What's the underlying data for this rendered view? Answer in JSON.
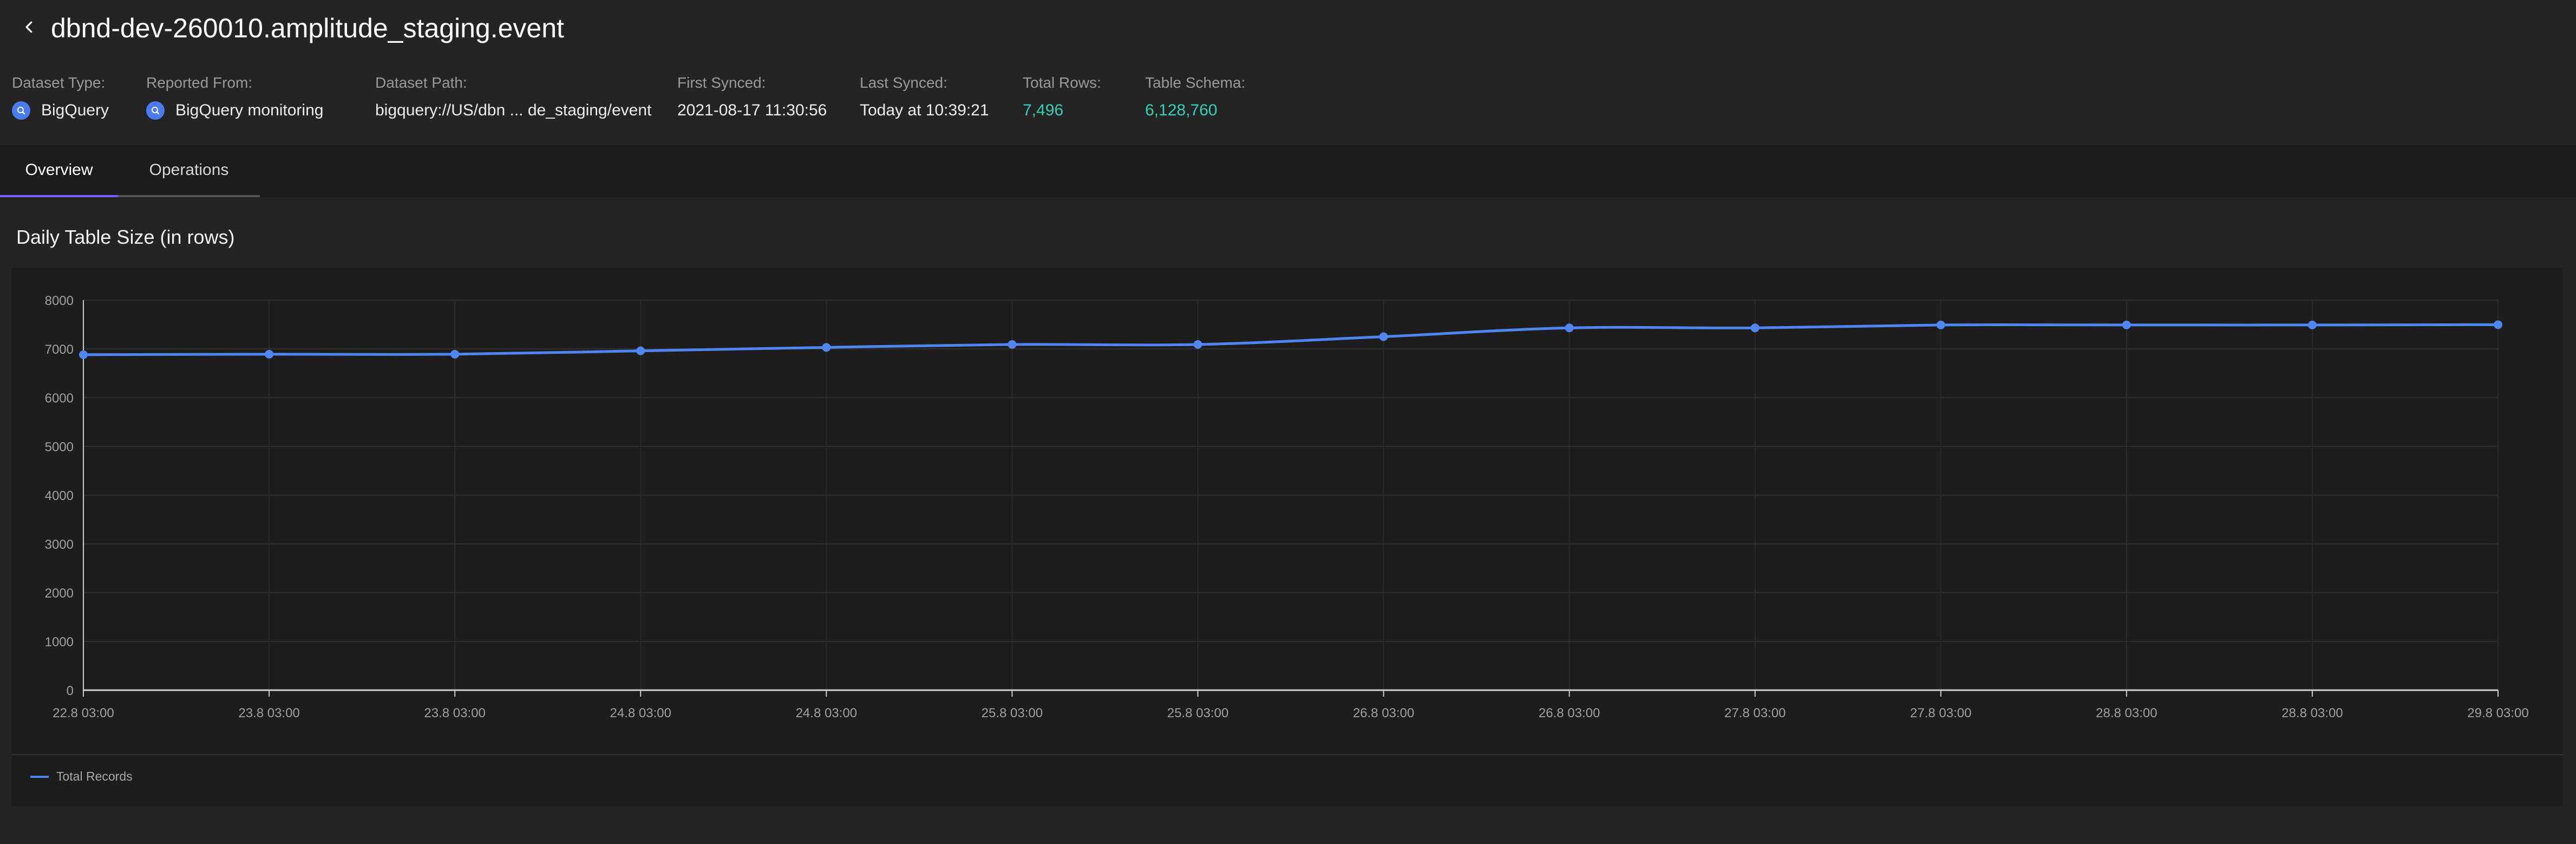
{
  "header": {
    "title": "dbnd-dev-260010.amplitude_staging.event",
    "meta": {
      "dataset_type": {
        "label": "Dataset Type:",
        "value": "BigQuery",
        "icon": "bigquery-icon"
      },
      "reported_from": {
        "label": "Reported From:",
        "value": "BigQuery monitoring",
        "icon": "bigquery-icon"
      },
      "dataset_path": {
        "label": "Dataset Path:",
        "value": "bigquery://US/dbn ... de_staging/event"
      },
      "first_synced": {
        "label": "First Synced:",
        "value": "2021-08-17 11:30:56"
      },
      "last_synced": {
        "label": "Last Synced:",
        "value": "Today at 10:39:21"
      },
      "total_rows": {
        "label": "Total Rows:",
        "value": "7,496"
      },
      "table_schema": {
        "label": "Table Schema:",
        "value": "6,128,760"
      }
    }
  },
  "tabs": [
    {
      "label": "Overview",
      "active": true
    },
    {
      "label": "Operations",
      "active": false
    }
  ],
  "section": {
    "title": "Daily Table Size (in rows)"
  },
  "colors": {
    "accent_teal": "#33d1b8",
    "tab_active": "#7b5cff",
    "series_line": "#4f86f0",
    "bigquery_blue": "#4a7cf0"
  },
  "chart_data": {
    "type": "line",
    "title": "Daily Table Size (in rows)",
    "xlabel": "",
    "ylabel": "",
    "ylim": [
      0,
      8000
    ],
    "yticks": [
      "0",
      "1000",
      "2000",
      "3000",
      "4000",
      "5000",
      "6000",
      "7000",
      "8000"
    ],
    "categories": [
      "22.8  03:00",
      "23.8  03:00",
      "23.8  03:00",
      "24.8  03:00",
      "24.8  03:00",
      "25.8  03:00",
      "25.8  03:00",
      "26.8  03:00",
      "26.8  03:00",
      "27.8  03:00",
      "27.8  03:00",
      "28.8  03:00",
      "28.8  03:00",
      "29.8  03:00"
    ],
    "series": [
      {
        "name": "Total Records",
        "values": [
          6880,
          6890,
          6890,
          6960,
          7030,
          7090,
          7090,
          7250,
          7430,
          7430,
          7490,
          7490,
          7490,
          7496
        ]
      }
    ],
    "grid": true,
    "legend": "bottom-left"
  }
}
